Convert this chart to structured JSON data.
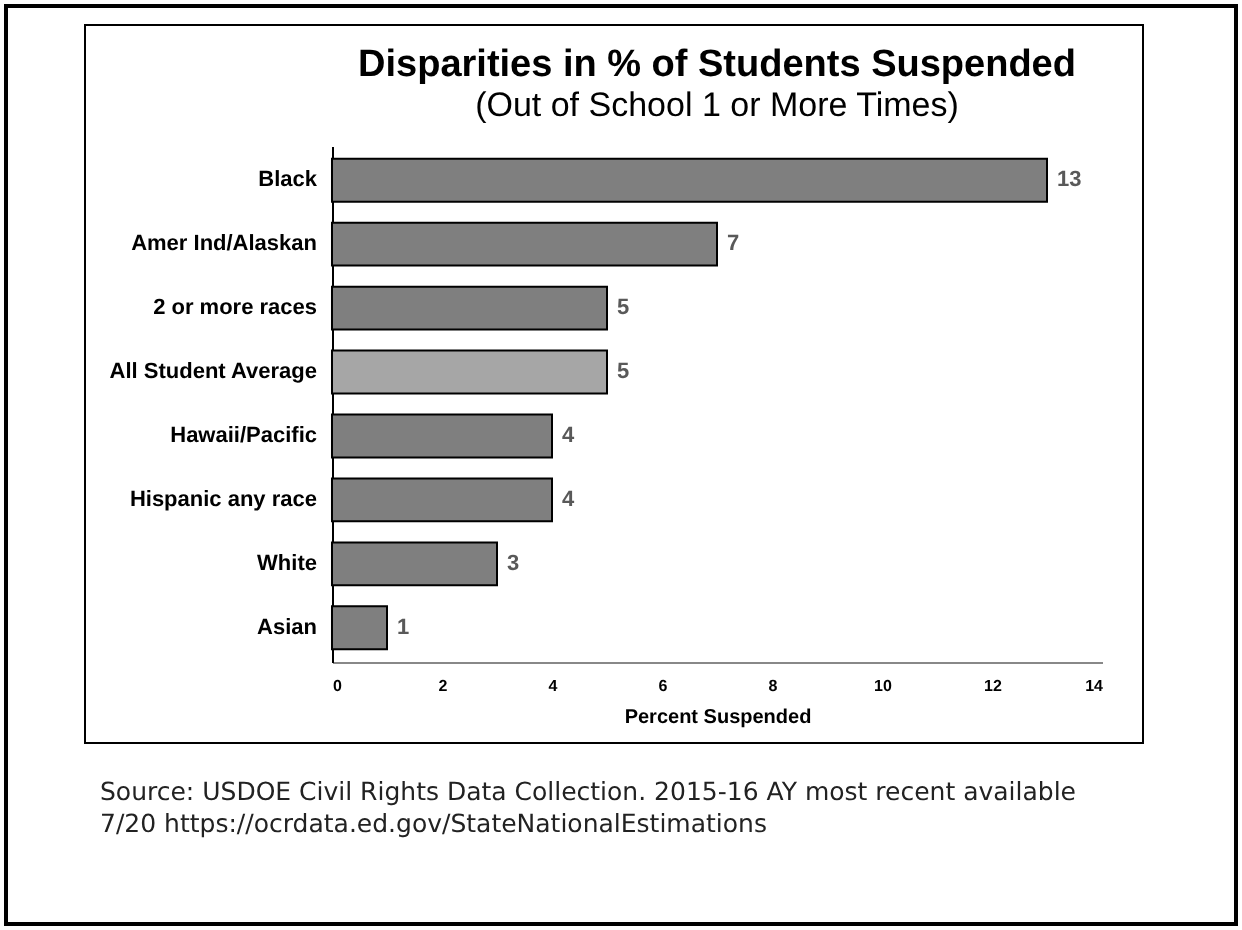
{
  "chart_data": {
    "type": "bar",
    "orientation": "horizontal",
    "title": "Disparities in % of Students Suspended",
    "subtitle": "(Out of School 1 or More Times)",
    "xlabel": "Percent Suspended",
    "categories": [
      "Black",
      "Amer Ind/Alaskan",
      "2 or more races",
      "All Student Average",
      "Hawaii/Pacific",
      "Hispanic any race",
      "White",
      "Asian"
    ],
    "values": [
      13,
      7,
      5,
      5,
      4,
      4,
      3,
      1
    ],
    "colors": [
      "#7f7f7f",
      "#7f7f7f",
      "#7f7f7f",
      "#a6a6a6",
      "#7f7f7f",
      "#7f7f7f",
      "#7f7f7f",
      "#7f7f7f"
    ],
    "xlim": [
      0,
      14
    ],
    "xticks": [
      0,
      2,
      4,
      6,
      8,
      10,
      12,
      14
    ],
    "grid": false,
    "data_labels": true,
    "annotations": [
      "Source: USDOE Civil Rights Data Collection. 2015-16 AY most recent available 7/20 https://ocrdata.ed.gov/StateNationalEstimations"
    ]
  }
}
